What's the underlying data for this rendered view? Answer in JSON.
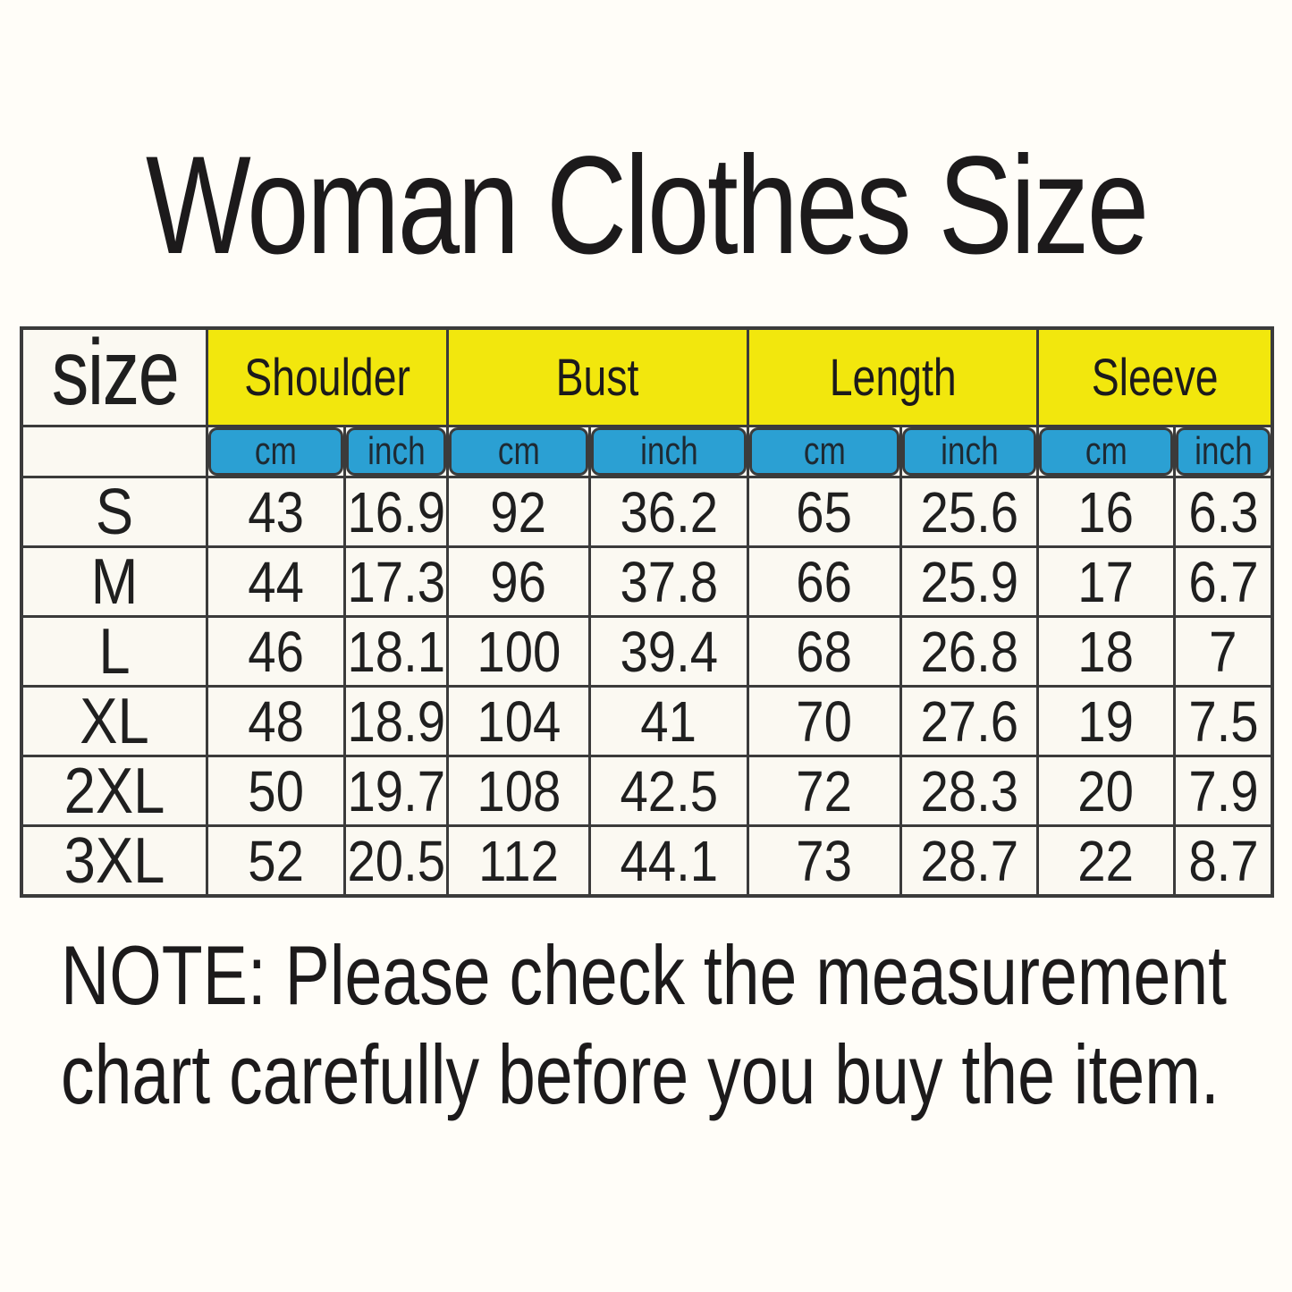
{
  "title": "Woman Clothes Size",
  "colors": {
    "background": "#fffdf8",
    "header_yellow": "#f2e70d",
    "unit_blue": "#2ba0d3",
    "grid_line": "#3b3b3b",
    "text": "#1c1a1b"
  },
  "table": {
    "corner_label": "size",
    "group_headers": [
      "Shoulder",
      "Bust",
      "Length",
      "Sleeve"
    ],
    "unit_labels": [
      "cm",
      "inch",
      "cm",
      "inch",
      "cm",
      "inch",
      "cm",
      "inch"
    ],
    "rows": [
      {
        "size": "S",
        "values": [
          "43",
          "16.9",
          "92",
          "36.2",
          "65",
          "25.6",
          "16",
          "6.3"
        ]
      },
      {
        "size": "M",
        "values": [
          "44",
          "17.3",
          "96",
          "37.8",
          "66",
          "25.9",
          "17",
          "6.7"
        ]
      },
      {
        "size": "L",
        "values": [
          "46",
          "18.1",
          "100",
          "39.4",
          "68",
          "26.8",
          "18",
          "7"
        ]
      },
      {
        "size": "XL",
        "values": [
          "48",
          "18.9",
          "104",
          "41",
          "70",
          "27.6",
          "19",
          "7.5"
        ]
      },
      {
        "size": "2XL",
        "values": [
          "50",
          "19.7",
          "108",
          "42.5",
          "72",
          "28.3",
          "20",
          "7.9"
        ]
      },
      {
        "size": "3XL",
        "values": [
          "52",
          "20.5",
          "112",
          "44.1",
          "73",
          "28.7",
          "22",
          "8.7"
        ]
      }
    ]
  },
  "note": {
    "line1": "NOTE: Please check the measurement",
    "line2": "chart carefully  before you buy the item."
  },
  "chart_data": {
    "type": "table",
    "title": "Woman Clothes Size",
    "columns": [
      "size",
      "Shoulder cm",
      "Shoulder inch",
      "Bust cm",
      "Bust inch",
      "Length cm",
      "Length inch",
      "Sleeve cm",
      "Sleeve inch"
    ],
    "rows": [
      [
        "S",
        43,
        16.9,
        92,
        36.2,
        65,
        25.6,
        16,
        6.3
      ],
      [
        "M",
        44,
        17.3,
        96,
        37.8,
        66,
        25.9,
        17,
        6.7
      ],
      [
        "L",
        46,
        18.1,
        100,
        39.4,
        68,
        26.8,
        18,
        7
      ],
      [
        "XL",
        48,
        18.9,
        104,
        41,
        70,
        27.6,
        19,
        7.5
      ],
      [
        "2XL",
        50,
        19.7,
        108,
        42.5,
        72,
        28.3,
        20,
        7.9
      ],
      [
        "3XL",
        52,
        20.5,
        112,
        44.1,
        73,
        28.7,
        22,
        8.7
      ]
    ],
    "note": "NOTE: Please check the measurement chart carefully before you buy the item."
  }
}
